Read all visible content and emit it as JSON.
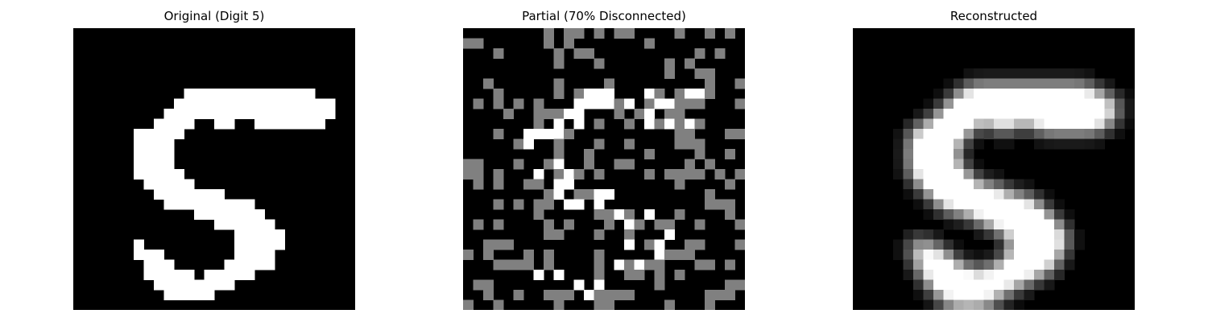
{
  "figure": {
    "panels": [
      {
        "title": "Original (Digit 5)"
      },
      {
        "title": "Partial (70% Disconnected)"
      },
      {
        "title": "Reconstructed"
      }
    ]
  }
}
